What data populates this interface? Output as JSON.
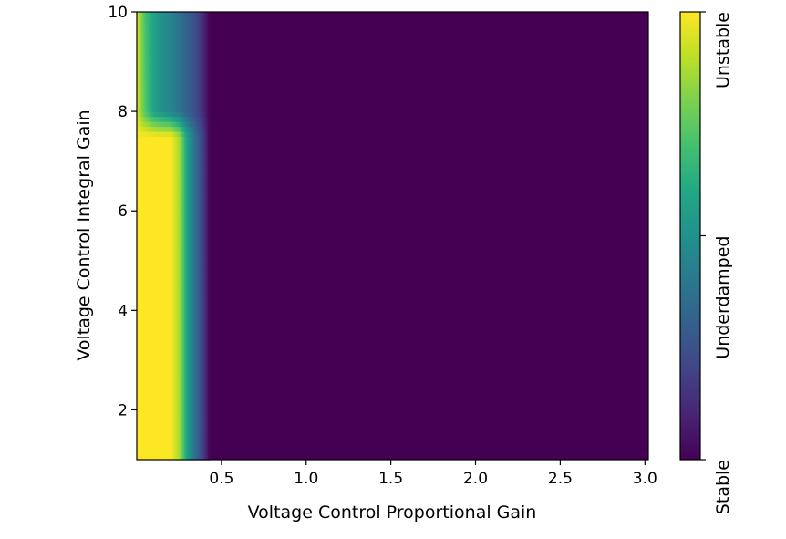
{
  "chart_data": {
    "type": "heatmap",
    "title": "",
    "xlabel": "Voltage Control Proportional Gain",
    "ylabel": "Voltage Control Integral Gain",
    "xlim": [
      0.0,
      3.02
    ],
    "ylim": [
      1,
      10
    ],
    "xticks": [
      "0.5",
      "1.0",
      "1.5",
      "2.0",
      "2.5",
      "3.0"
    ],
    "xtick_values": [
      0.5,
      1.0,
      1.5,
      2.0,
      2.5,
      3.0
    ],
    "yticks": [
      "2",
      "4",
      "6",
      "8",
      "10"
    ],
    "ytick_values": [
      2,
      4,
      6,
      8,
      10
    ],
    "colormap": "viridis",
    "colorbar": {
      "range": [
        0,
        2
      ],
      "ticks": [
        {
          "value": 0,
          "label": "Stable"
        },
        {
          "value": 1,
          "label": "Underdamped"
        },
        {
          "value": 2,
          "label": "Unstable"
        }
      ]
    },
    "grid_x": [
      0.0,
      0.05,
      0.1,
      0.15,
      0.2,
      0.25,
      0.3,
      0.35,
      0.4,
      0.43,
      0.45,
      3.02
    ],
    "grid_y": [
      1,
      7.5,
      8.0,
      10
    ],
    "z": [
      [
        2.0,
        2.0,
        2.0,
        2.0,
        2.0,
        1.75,
        1.1,
        0.7,
        0.3,
        0.0,
        0.0,
        0.0
      ],
      [
        2.0,
        2.0,
        2.0,
        2.0,
        2.0,
        1.75,
        1.1,
        0.7,
        0.3,
        0.0,
        0.0,
        0.0
      ],
      [
        1.9,
        1.45,
        1.15,
        1.0,
        0.9,
        0.75,
        0.6,
        0.45,
        0.2,
        0.0,
        0.0,
        0.0
      ],
      [
        1.9,
        1.4,
        1.15,
        1.0,
        0.9,
        0.75,
        0.6,
        0.45,
        0.2,
        0.0,
        0.0,
        0.0
      ]
    ]
  }
}
